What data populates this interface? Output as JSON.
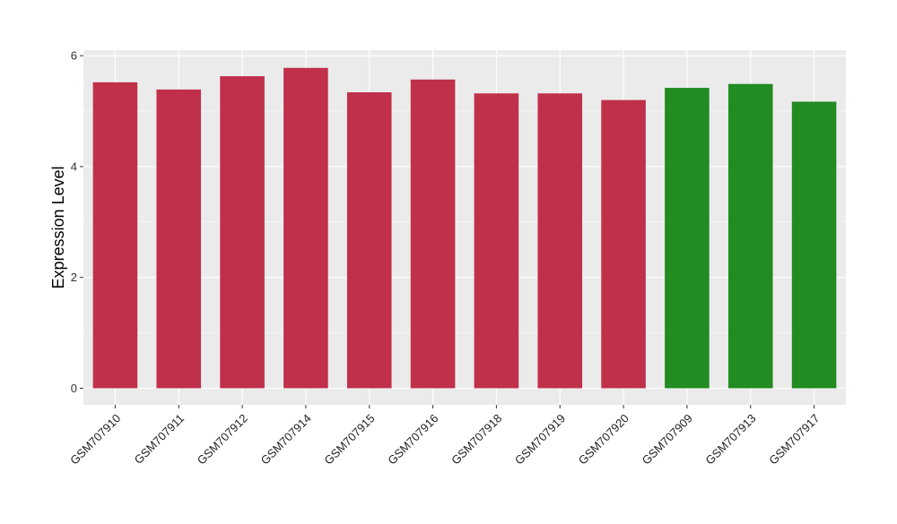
{
  "chart_data": {
    "type": "bar",
    "title": "",
    "xlabel": "",
    "ylabel": "Expression Level",
    "ylim": [
      -0.3,
      6.1
    ],
    "yticks": [
      0,
      2,
      4,
      6
    ],
    "grid": true,
    "categories": [
      "GSM707910",
      "GSM707911",
      "GSM707912",
      "GSM707914",
      "GSM707915",
      "GSM707916",
      "GSM707918",
      "GSM707919",
      "GSM707920",
      "GSM707909",
      "GSM707913",
      "GSM707917"
    ],
    "values": [
      5.52,
      5.39,
      5.63,
      5.78,
      5.34,
      5.57,
      5.32,
      5.32,
      5.2,
      5.42,
      5.49,
      5.17
    ],
    "bar_colors": [
      "#c0304a",
      "#c0304a",
      "#c0304a",
      "#c0304a",
      "#c0304a",
      "#c0304a",
      "#c0304a",
      "#c0304a",
      "#c0304a",
      "#228b22",
      "#228b22",
      "#228b22"
    ],
    "colors": {
      "panel_background": "#ebebeb",
      "grid": "#ffffff",
      "group_a": "#c0304a",
      "group_b": "#228b22"
    }
  }
}
